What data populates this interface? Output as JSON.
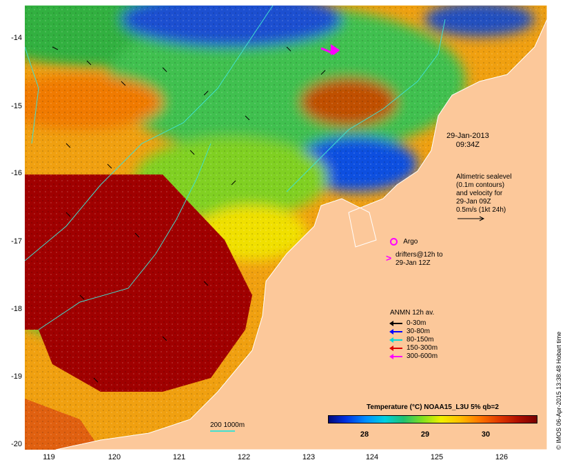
{
  "axes": {
    "x_ticks": [
      "119",
      "120",
      "121",
      "122",
      "123",
      "124",
      "125",
      "126"
    ],
    "y_ticks": [
      "-14",
      "-15",
      "-16",
      "-17",
      "-18",
      "-19",
      "-20"
    ],
    "lon_range": [
      118.6,
      126.7
    ],
    "lat_range": [
      -20.1,
      -13.6
    ]
  },
  "annotations": {
    "date_line1": "29-Jan-2013",
    "date_line2": "09:34Z",
    "altimetry_lines": [
      "Altimetric sealevel",
      "(0.1m contours)",
      "and velocity for",
      "29-Jan 09Z",
      "0.5m/s (1kt 24h)"
    ],
    "argo_label": "Argo",
    "drifter_lines": [
      "drifters@12h to",
      "29-Jan 12Z"
    ],
    "anmn_title": "ANMN 12h av.",
    "anmn_items": [
      {
        "label": "0-30m",
        "color": "#000000"
      },
      {
        "label": "30-80m",
        "color": "#0000ff"
      },
      {
        "label": "80-150m",
        "color": "#00d8d8"
      },
      {
        "label": "150-300m",
        "color": "#e00000"
      },
      {
        "label": "300-600m",
        "color": "#ff00ff"
      }
    ]
  },
  "colorbar": {
    "title": "Temperature (°C) NOAA15_L3U 5% qb=2",
    "ticks": [
      "28",
      "29",
      "30"
    ]
  },
  "scale": {
    "label": "200  1000m"
  },
  "credit": "© IMOS 06-Apr-2015 13:38:48 Hobart time",
  "colors": {
    "land": "#fcc89a",
    "argo": "#ff00ff",
    "drifter": "#ff00ff",
    "contour": "#40e0d0",
    "hot": "#a00000"
  }
}
